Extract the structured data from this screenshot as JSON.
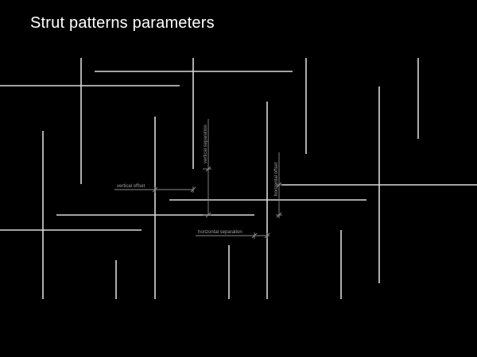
{
  "title": "Strut patterns parameters",
  "labels": {
    "vertical_offset": "vertical offset",
    "vertical_separation": "vertical separation",
    "horizontal_separation": "horizontal separation",
    "horizontal_offset": "horizontal offset"
  },
  "colors": {
    "background": "#000000",
    "strut": "#d9d9d9",
    "dimension": "#8c8c8c",
    "text": "#ffffff"
  }
}
